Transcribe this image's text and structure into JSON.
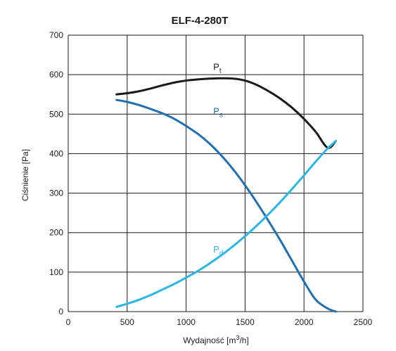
{
  "chart_data": {
    "type": "line",
    "title": "ELF-4-280T",
    "xlabel": "Wydajność [m³/h]",
    "ylabel": "Ciśnienie [Pa]",
    "xlim": [
      0,
      2500
    ],
    "ylim": [
      0,
      700
    ],
    "xticks": [
      "0",
      "500",
      "1000",
      "1500",
      "2000",
      "2500"
    ],
    "yticks": [
      "0",
      "100",
      "200",
      "300",
      "400",
      "500",
      "600",
      "700"
    ],
    "grid": true,
    "series": [
      {
        "name": "Pt",
        "main": "P",
        "sub": "t",
        "color": "#1a1a1a",
        "points": [
          [
            410,
            550
          ],
          [
            500,
            553
          ],
          [
            600,
            558
          ],
          [
            700,
            565
          ],
          [
            800,
            573
          ],
          [
            900,
            580
          ],
          [
            1000,
            585
          ],
          [
            1100,
            588
          ],
          [
            1200,
            590
          ],
          [
            1300,
            591
          ],
          [
            1400,
            590
          ],
          [
            1500,
            585
          ],
          [
            1600,
            574
          ],
          [
            1700,
            558
          ],
          [
            1800,
            539
          ],
          [
            1900,
            516
          ],
          [
            2000,
            488
          ],
          [
            2100,
            455
          ],
          [
            2200,
            415
          ],
          [
            2270,
            432
          ]
        ]
      },
      {
        "name": "Ps",
        "main": "P",
        "sub": "s",
        "color": "#1f6fb5",
        "points": [
          [
            410,
            536
          ],
          [
            500,
            531
          ],
          [
            600,
            523
          ],
          [
            700,
            513
          ],
          [
            800,
            502
          ],
          [
            900,
            488
          ],
          [
            1000,
            470
          ],
          [
            1100,
            450
          ],
          [
            1200,
            425
          ],
          [
            1300,
            395
          ],
          [
            1400,
            360
          ],
          [
            1500,
            320
          ],
          [
            1600,
            276
          ],
          [
            1700,
            229
          ],
          [
            1800,
            180
          ],
          [
            1900,
            128
          ],
          [
            2000,
            76
          ],
          [
            2100,
            30
          ],
          [
            2200,
            8
          ],
          [
            2270,
            0
          ]
        ]
      },
      {
        "name": "Pd",
        "main": "P",
        "sub": "d",
        "color": "#29b7e6",
        "points": [
          [
            410,
            12
          ],
          [
            500,
            20
          ],
          [
            600,
            30
          ],
          [
            700,
            42
          ],
          [
            800,
            56
          ],
          [
            900,
            70
          ],
          [
            1000,
            86
          ],
          [
            1100,
            103
          ],
          [
            1200,
            122
          ],
          [
            1300,
            143
          ],
          [
            1400,
            166
          ],
          [
            1500,
            191
          ],
          [
            1600,
            218
          ],
          [
            1700,
            247
          ],
          [
            1800,
            278
          ],
          [
            1900,
            311
          ],
          [
            2000,
            345
          ],
          [
            2100,
            380
          ],
          [
            2200,
            413
          ],
          [
            2270,
            432
          ]
        ]
      }
    ]
  }
}
